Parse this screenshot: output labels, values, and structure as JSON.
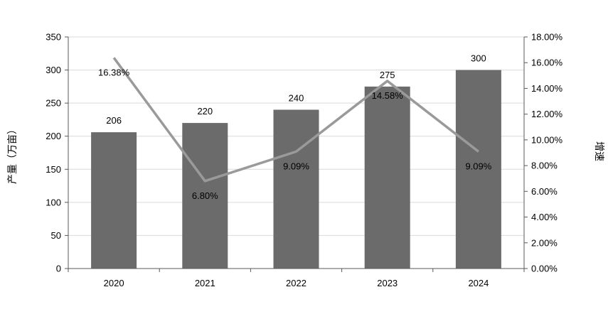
{
  "chart_data": {
    "type": "bar+line",
    "categories": [
      "2020",
      "2021",
      "2022",
      "2023",
      "2024"
    ],
    "bar_series": {
      "values": [
        206,
        220,
        240,
        275,
        300
      ],
      "data_labels": [
        "206",
        "220",
        "240",
        "275",
        "300"
      ],
      "color": "#6b6b6b"
    },
    "line_series": {
      "values": [
        16.38,
        6.8,
        9.09,
        14.58,
        9.09
      ],
      "data_labels": [
        "16.38%",
        "6.80%",
        "9.09%",
        "14.58%",
        "9.09%"
      ],
      "color": "#9a9a9a"
    },
    "y_left": {
      "label": "产量（万亩）",
      "min": 0,
      "max": 350,
      "step": 50,
      "ticks": [
        "0",
        "50",
        "100",
        "150",
        "200",
        "250",
        "300",
        "350"
      ]
    },
    "y_right": {
      "label": "增速",
      "min": 0,
      "max": 18,
      "step": 2,
      "ticks": [
        "0.00%",
        "2.00%",
        "4.00%",
        "6.00%",
        "8.00%",
        "10.00%",
        "12.00%",
        "14.00%",
        "16.00%",
        "18.00%"
      ]
    },
    "grid": true,
    "legend": "none"
  }
}
